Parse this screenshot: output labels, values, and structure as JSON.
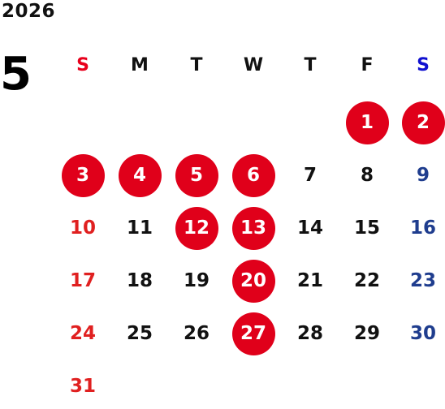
{
  "calendar": {
    "year": "2026",
    "month": "5",
    "weekdays": [
      "S",
      "M",
      "T",
      "W",
      "T",
      "F",
      "S"
    ],
    "first_weekday_index": 5,
    "days_in_month": 31,
    "holidays": [
      1,
      2,
      3,
      4,
      5,
      6,
      12,
      13,
      20,
      27
    ],
    "colors": {
      "holiday_bg": "#e0001a",
      "sunday": "#e02020",
      "saturday": "#1f3d8e",
      "weekday": "#111111",
      "header_sunday": "#e8001c",
      "header_saturday": "#1010d0"
    }
  }
}
